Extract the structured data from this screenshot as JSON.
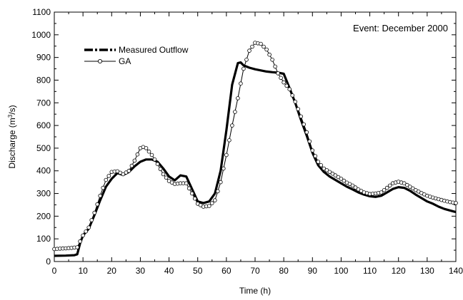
{
  "chart_data": {
    "type": "line",
    "annotation": "Event: December 2000",
    "xlabel": "Time (h)",
    "ylabel_prefix": "Discharge (m",
    "ylabel_sup": "3",
    "ylabel_suffix": "/s)",
    "xlim": [
      0,
      140
    ],
    "ylim": [
      0,
      1100
    ],
    "x_ticks": [
      0,
      10,
      20,
      30,
      40,
      50,
      60,
      70,
      80,
      90,
      100,
      110,
      120,
      130,
      140
    ],
    "y_ticks": [
      0,
      100,
      200,
      300,
      400,
      500,
      600,
      700,
      800,
      900,
      1000,
      1100
    ],
    "legend_position": "top-left",
    "grid": false,
    "series": [
      {
        "name": "Measured Outflow",
        "color": "#000000",
        "style": "dash-dot-thick",
        "points": [
          [
            0,
            25
          ],
          [
            4,
            26
          ],
          [
            7,
            28
          ],
          [
            8,
            32
          ],
          [
            9,
            80
          ],
          [
            10,
            115
          ],
          [
            12,
            145
          ],
          [
            14,
            205
          ],
          [
            16,
            270
          ],
          [
            18,
            330
          ],
          [
            20,
            365
          ],
          [
            22,
            390
          ],
          [
            24,
            382
          ],
          [
            26,
            395
          ],
          [
            28,
            420
          ],
          [
            30,
            440
          ],
          [
            32,
            450
          ],
          [
            34,
            450
          ],
          [
            36,
            440
          ],
          [
            38,
            410
          ],
          [
            40,
            375
          ],
          [
            42,
            358
          ],
          [
            44,
            380
          ],
          [
            46,
            375
          ],
          [
            48,
            320
          ],
          [
            50,
            265
          ],
          [
            52,
            258
          ],
          [
            54,
            265
          ],
          [
            56,
            300
          ],
          [
            58,
            400
          ],
          [
            60,
            580
          ],
          [
            62,
            780
          ],
          [
            64,
            875
          ],
          [
            65,
            878
          ],
          [
            66,
            865
          ],
          [
            68,
            855
          ],
          [
            70,
            848
          ],
          [
            72,
            843
          ],
          [
            74,
            838
          ],
          [
            76,
            835
          ],
          [
            78,
            833
          ],
          [
            80,
            828
          ],
          [
            82,
            765
          ],
          [
            84,
            700
          ],
          [
            86,
            625
          ],
          [
            88,
            555
          ],
          [
            90,
            480
          ],
          [
            92,
            425
          ],
          [
            94,
            395
          ],
          [
            96,
            375
          ],
          [
            98,
            360
          ],
          [
            100,
            345
          ],
          [
            102,
            330
          ],
          [
            104,
            318
          ],
          [
            106,
            305
          ],
          [
            108,
            295
          ],
          [
            110,
            288
          ],
          [
            112,
            285
          ],
          [
            114,
            290
          ],
          [
            116,
            305
          ],
          [
            118,
            320
          ],
          [
            120,
            328
          ],
          [
            122,
            325
          ],
          [
            124,
            312
          ],
          [
            126,
            295
          ],
          [
            128,
            280
          ],
          [
            130,
            265
          ],
          [
            132,
            255
          ],
          [
            134,
            242
          ],
          [
            136,
            232
          ],
          [
            138,
            225
          ],
          [
            140,
            218
          ]
        ]
      },
      {
        "name": "GA",
        "color": "#000000",
        "style": "line-open-circles",
        "points": [
          [
            0,
            55
          ],
          [
            2,
            57
          ],
          [
            4,
            58
          ],
          [
            6,
            60
          ],
          [
            8,
            63
          ],
          [
            10,
            115
          ],
          [
            12,
            150
          ],
          [
            14,
            215
          ],
          [
            16,
            290
          ],
          [
            18,
            360
          ],
          [
            20,
            395
          ],
          [
            22,
            398
          ],
          [
            24,
            385
          ],
          [
            26,
            400
          ],
          [
            28,
            445
          ],
          [
            30,
            500
          ],
          [
            31,
            505
          ],
          [
            32,
            500
          ],
          [
            34,
            470
          ],
          [
            36,
            430
          ],
          [
            38,
            385
          ],
          [
            40,
            355
          ],
          [
            42,
            342
          ],
          [
            44,
            345
          ],
          [
            46,
            345
          ],
          [
            48,
            300
          ],
          [
            50,
            255
          ],
          [
            52,
            242
          ],
          [
            54,
            245
          ],
          [
            56,
            270
          ],
          [
            58,
            350
          ],
          [
            60,
            470
          ],
          [
            62,
            600
          ],
          [
            64,
            720
          ],
          [
            66,
            850
          ],
          [
            68,
            930
          ],
          [
            70,
            965
          ],
          [
            72,
            960
          ],
          [
            74,
            935
          ],
          [
            76,
            890
          ],
          [
            78,
            830
          ],
          [
            80,
            790
          ],
          [
            82,
            760
          ],
          [
            84,
            705
          ],
          [
            86,
            640
          ],
          [
            88,
            570
          ],
          [
            90,
            490
          ],
          [
            92,
            440
          ],
          [
            94,
            410
          ],
          [
            96,
            395
          ],
          [
            98,
            380
          ],
          [
            100,
            365
          ],
          [
            102,
            348
          ],
          [
            104,
            335
          ],
          [
            106,
            318
          ],
          [
            108,
            305
          ],
          [
            110,
            298
          ],
          [
            112,
            300
          ],
          [
            114,
            305
          ],
          [
            116,
            325
          ],
          [
            118,
            345
          ],
          [
            120,
            352
          ],
          [
            122,
            345
          ],
          [
            124,
            330
          ],
          [
            126,
            315
          ],
          [
            128,
            302
          ],
          [
            130,
            290
          ],
          [
            132,
            282
          ],
          [
            134,
            275
          ],
          [
            136,
            268
          ],
          [
            138,
            262
          ],
          [
            140,
            258
          ]
        ]
      }
    ]
  }
}
